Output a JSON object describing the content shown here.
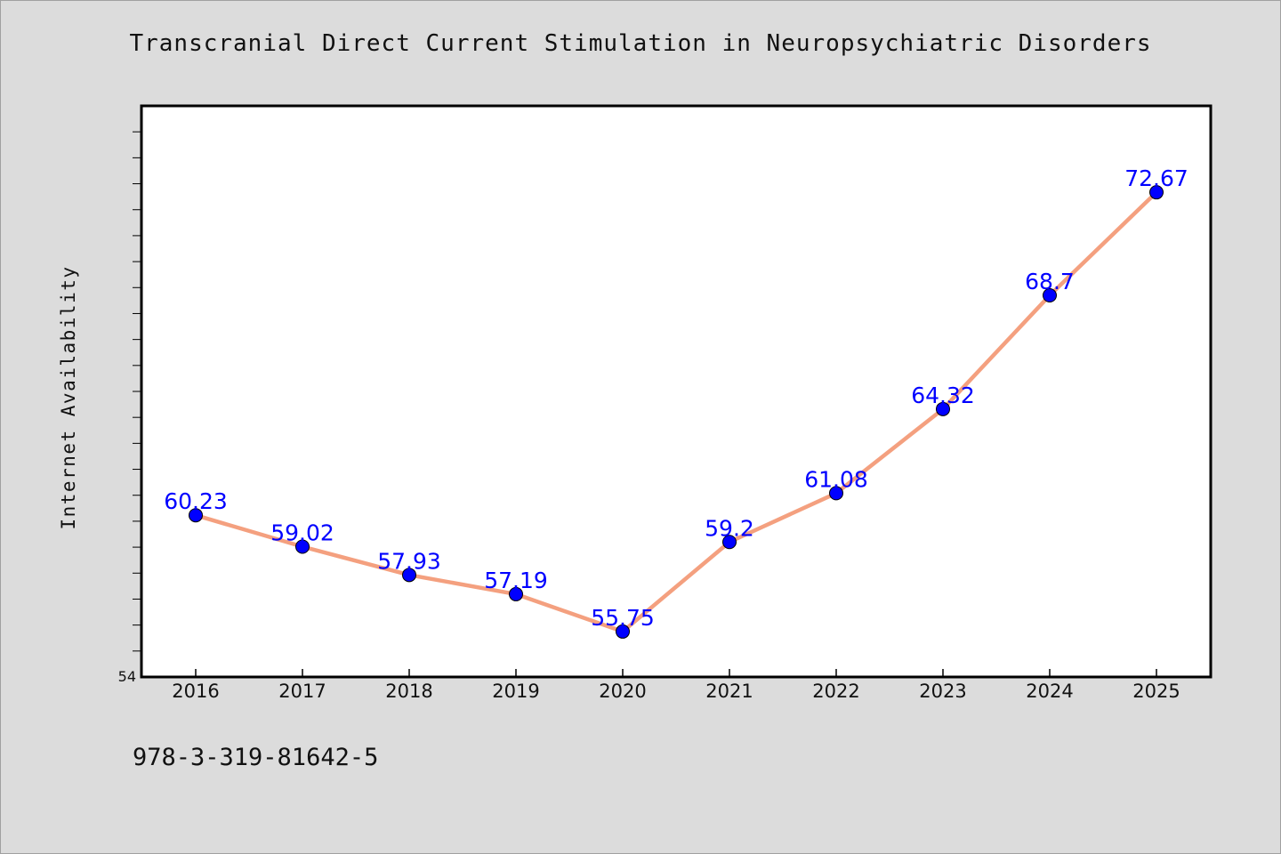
{
  "chart_data": {
    "type": "line",
    "title": "Transcranial Direct Current Stimulation in Neuropsychiatric Disorders",
    "xlabel": "",
    "ylabel": "Internet Availability",
    "categories": [
      "2016",
      "2017",
      "2018",
      "2019",
      "2020",
      "2021",
      "2022",
      "2023",
      "2024",
      "2025"
    ],
    "series": [
      {
        "values": [
          60.23,
          59.02,
          57.93,
          57.19,
          55.75,
          59.2,
          61.08,
          64.32,
          68.7,
          72.67
        ],
        "labels": [
          "60.23",
          "59.02",
          "57.93",
          "57.19",
          "55.75",
          "59.2",
          "61.08",
          "64.32",
          "68.7",
          "72.67"
        ]
      }
    ],
    "ylim": [
      54,
      76
    ],
    "y_tick_labels": [
      "54"
    ],
    "grid": false,
    "legend": "none",
    "colors": {
      "line": "#f4a07f",
      "marker": "#0000ff",
      "label": "#0000ff",
      "plot_bg": "#ffffff",
      "page_bg": "#dcdcdc"
    }
  },
  "footer_text": "978-3-319-81642-5"
}
